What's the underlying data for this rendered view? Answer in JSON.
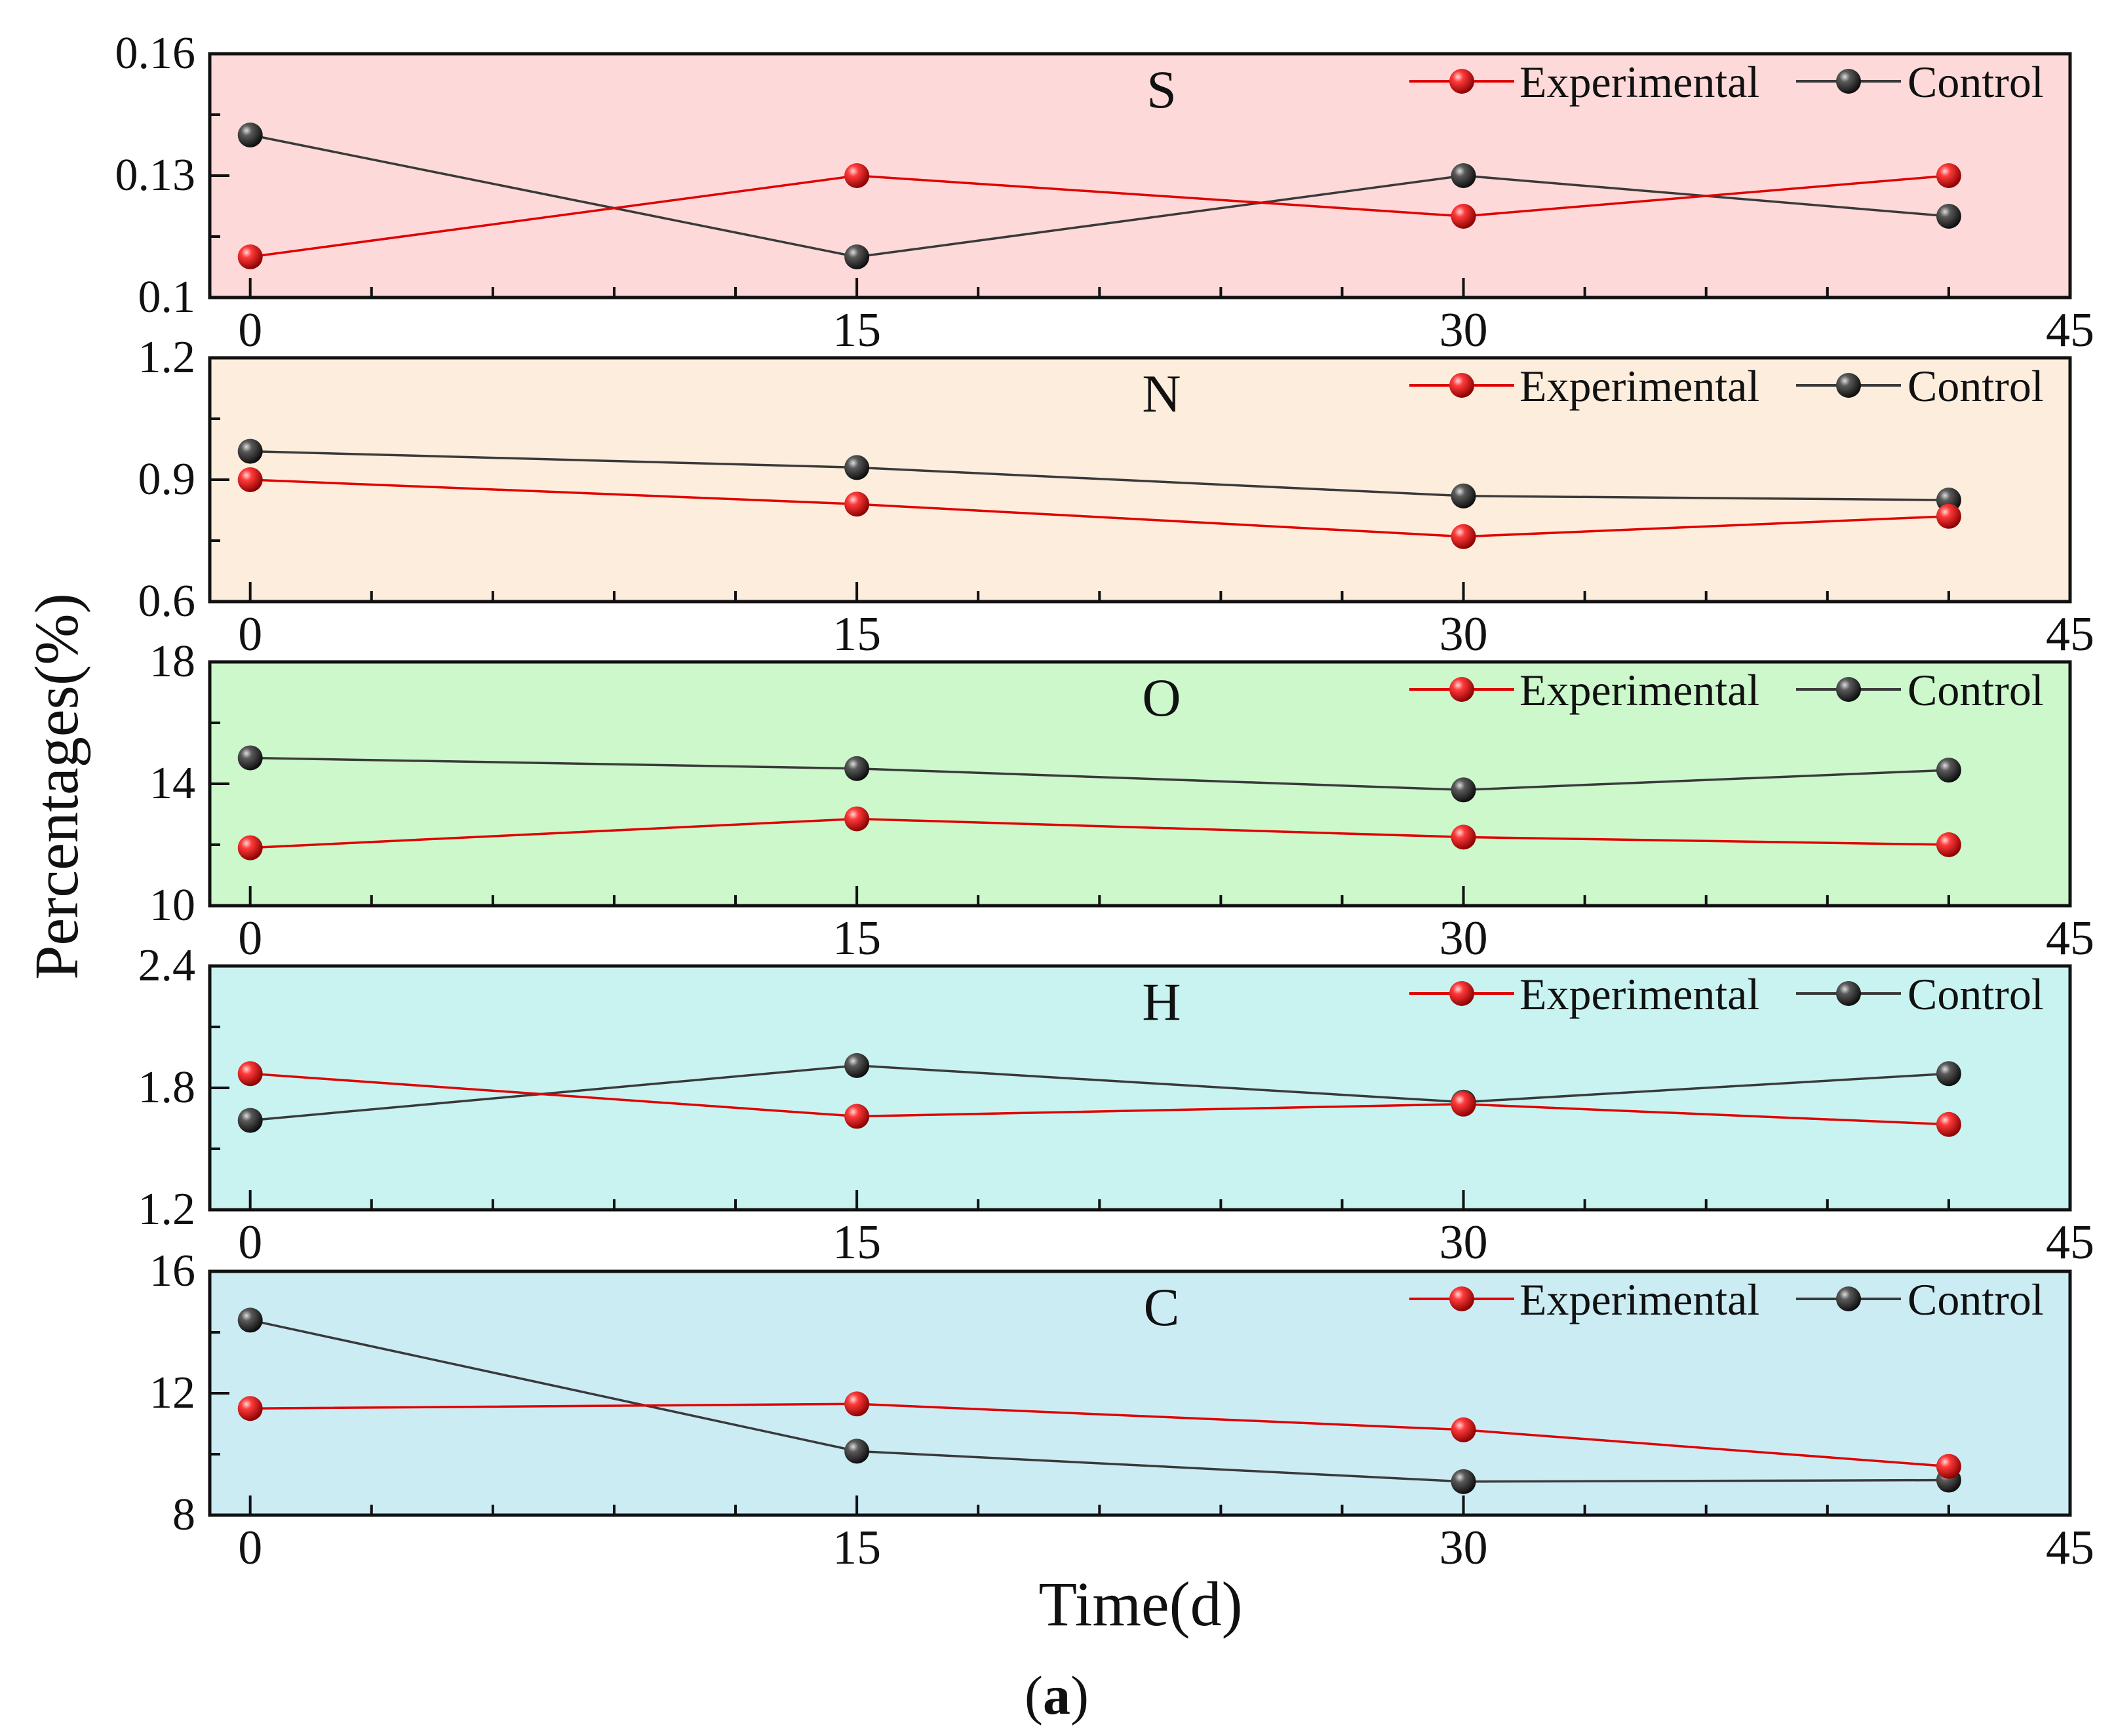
{
  "figure": {
    "ylabel": "Percentages(%)",
    "xlabel": "Time(d)",
    "caption_open": "(",
    "caption_letter": "a",
    "caption_close": ")"
  },
  "legend": {
    "experimental": "Experimental",
    "control": "Control"
  },
  "colors": {
    "experimental": "#e00000",
    "control": "#3a3a3a",
    "axis": "#111111"
  },
  "chart_data": [
    {
      "type": "line",
      "title": "S",
      "background": "#fdd9d9",
      "xlabel": "Time(d)",
      "ylabel": "Percentages(%)",
      "xlim": [
        -1,
        45
      ],
      "ylim": [
        0.1,
        0.16
      ],
      "x_ticks": [
        0,
        15,
        30,
        45
      ],
      "x_tick_labels": [
        "0",
        "15",
        "30",
        "45"
      ],
      "y_ticks": [
        0.1,
        0.13,
        0.16
      ],
      "y_tick_labels": [
        "0.1",
        "0.13",
        "0.16"
      ],
      "x": [
        0,
        15,
        30,
        42
      ],
      "series": [
        {
          "name": "Experimental",
          "values": [
            0.11,
            0.13,
            0.12,
            0.13
          ]
        },
        {
          "name": "Control",
          "values": [
            0.14,
            0.11,
            0.13,
            0.12
          ]
        }
      ]
    },
    {
      "type": "line",
      "title": "N",
      "background": "#fdeddc",
      "xlabel": "Time(d)",
      "ylabel": "Percentages(%)",
      "xlim": [
        -1,
        45
      ],
      "ylim": [
        0.6,
        1.2
      ],
      "x_ticks": [
        0,
        15,
        30,
        45
      ],
      "x_tick_labels": [
        "0",
        "15",
        "30",
        "45"
      ],
      "y_ticks": [
        0.6,
        0.9,
        1.2
      ],
      "y_tick_labels": [
        "0.6",
        "0.9",
        "1.2"
      ],
      "x": [
        0,
        15,
        30,
        42
      ],
      "series": [
        {
          "name": "Experimental",
          "values": [
            0.9,
            0.84,
            0.76,
            0.81
          ]
        },
        {
          "name": "Control",
          "values": [
            0.97,
            0.93,
            0.86,
            0.85
          ]
        }
      ]
    },
    {
      "type": "line",
      "title": "O",
      "background": "#ccf8cc",
      "xlabel": "Time(d)",
      "ylabel": "Percentages(%)",
      "xlim": [
        -1,
        45
      ],
      "ylim": [
        10,
        18
      ],
      "x_ticks": [
        0,
        15,
        30,
        45
      ],
      "x_tick_labels": [
        "0",
        "15",
        "30",
        "45"
      ],
      "y_ticks": [
        10,
        14,
        18
      ],
      "y_tick_labels": [
        "10",
        "14",
        "18"
      ],
      "x": [
        0,
        15,
        30,
        42
      ],
      "series": [
        {
          "name": "Experimental",
          "values": [
            11.9,
            12.85,
            12.25,
            12.0
          ]
        },
        {
          "name": "Control",
          "values": [
            14.85,
            14.5,
            13.8,
            14.45
          ]
        }
      ]
    },
    {
      "type": "line",
      "title": "H",
      "background": "#c8f3f1",
      "xlabel": "Time(d)",
      "ylabel": "Percentages(%)",
      "xlim": [
        -1,
        45
      ],
      "ylim": [
        1.2,
        2.4
      ],
      "x_ticks": [
        0,
        15,
        30,
        45
      ],
      "x_tick_labels": [
        "0",
        "15",
        "30",
        "45"
      ],
      "y_ticks": [
        1.2,
        1.8,
        2.4
      ],
      "y_tick_labels": [
        "1.2",
        "1.8",
        "2.4"
      ],
      "x": [
        0,
        15,
        30,
        42
      ],
      "series": [
        {
          "name": "Experimental",
          "values": [
            1.87,
            1.66,
            1.72,
            1.62
          ]
        },
        {
          "name": "Control",
          "values": [
            1.64,
            1.91,
            1.73,
            1.87
          ]
        }
      ]
    },
    {
      "type": "line",
      "title": "C",
      "background": "#ccecf4",
      "xlabel": "Time(d)",
      "ylabel": "Percentages(%)",
      "xlim": [
        -1,
        45
      ],
      "ylim": [
        8,
        16
      ],
      "x_ticks": [
        0,
        15,
        30,
        45
      ],
      "x_tick_labels": [
        "0",
        "15",
        "30",
        "45"
      ],
      "y_ticks": [
        8,
        12,
        16
      ],
      "y_tick_labels": [
        "8",
        "12",
        "16"
      ],
      "x": [
        0,
        15,
        30,
        42
      ],
      "series": [
        {
          "name": "Experimental",
          "values": [
            11.5,
            11.65,
            10.8,
            9.6
          ]
        },
        {
          "name": "Control",
          "values": [
            14.4,
            10.1,
            9.1,
            9.15
          ]
        }
      ]
    }
  ]
}
